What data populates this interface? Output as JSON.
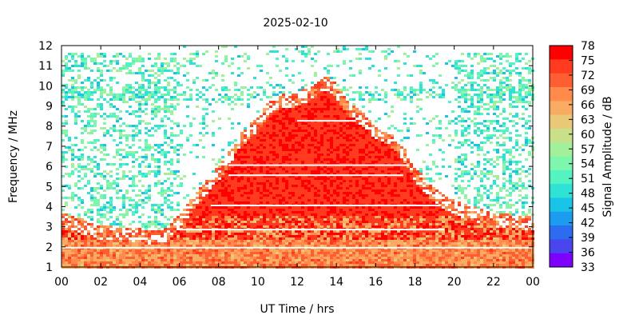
{
  "chart_data": {
    "type": "heatmap",
    "title": "2025-02-10",
    "xlabel": "UT Time / hrs",
    "ylabel": "Frequency / MHz",
    "colorbar_label": "Signal Amplitude / dB",
    "x_ticks": [
      "00",
      "02",
      "04",
      "06",
      "08",
      "10",
      "12",
      "14",
      "16",
      "18",
      "20",
      "22",
      "00"
    ],
    "x_range_hours": [
      0,
      24
    ],
    "y_ticks": [
      "1",
      "2",
      "3",
      "4",
      "5",
      "6",
      "7",
      "8",
      "9",
      "10",
      "11",
      "12"
    ],
    "y_range_mhz": [
      1,
      12
    ],
    "colorbar_ticks": [
      "78",
      "75",
      "72",
      "69",
      "66",
      "63",
      "60",
      "57",
      "54",
      "51",
      "48",
      "45",
      "42",
      "39",
      "36",
      "33"
    ],
    "colorbar_range_db": [
      33,
      78
    ],
    "colorbar_colors": [
      "#ff0000",
      "#ff3a1e",
      "#ff5e32",
      "#ff8a4a",
      "#f9aa63",
      "#e9c978",
      "#c9e088",
      "#a2f09a",
      "#7ef7ad",
      "#54f3c2",
      "#2ee2d6",
      "#19c4e6",
      "#1c9cee",
      "#2c6cee",
      "#4a46ee",
      "#7e00ff"
    ],
    "overlay_fof2_profile_mhz": [
      [
        0,
        3.0
      ],
      [
        1,
        2.7
      ],
      [
        2,
        2.4
      ],
      [
        3,
        2.3
      ],
      [
        4,
        2.2
      ],
      [
        5,
        2.1
      ],
      [
        5.5,
        2.4
      ],
      [
        6,
        2.9
      ],
      [
        6.5,
        3.5
      ],
      [
        7,
        4.2
      ],
      [
        8,
        5.3
      ],
      [
        8.5,
        6.0
      ],
      [
        9,
        6.8
      ],
      [
        10,
        7.8
      ],
      [
        10.5,
        8.4
      ],
      [
        11,
        8.8
      ],
      [
        12,
        9.0
      ],
      [
        13,
        9.4
      ],
      [
        13.5,
        9.8
      ],
      [
        14,
        9.4
      ],
      [
        14.5,
        8.6
      ],
      [
        15,
        8.3
      ],
      [
        16,
        7.4
      ],
      [
        16.5,
        7.1
      ],
      [
        17,
        6.8
      ],
      [
        17.5,
        6.2
      ],
      [
        18,
        5.3
      ],
      [
        18.5,
        4.7
      ],
      [
        19,
        4.2
      ],
      [
        20,
        3.6
      ],
      [
        21,
        3.3
      ],
      [
        22,
        3.0
      ],
      [
        23,
        2.9
      ],
      [
        24,
        2.8
      ]
    ]
  }
}
